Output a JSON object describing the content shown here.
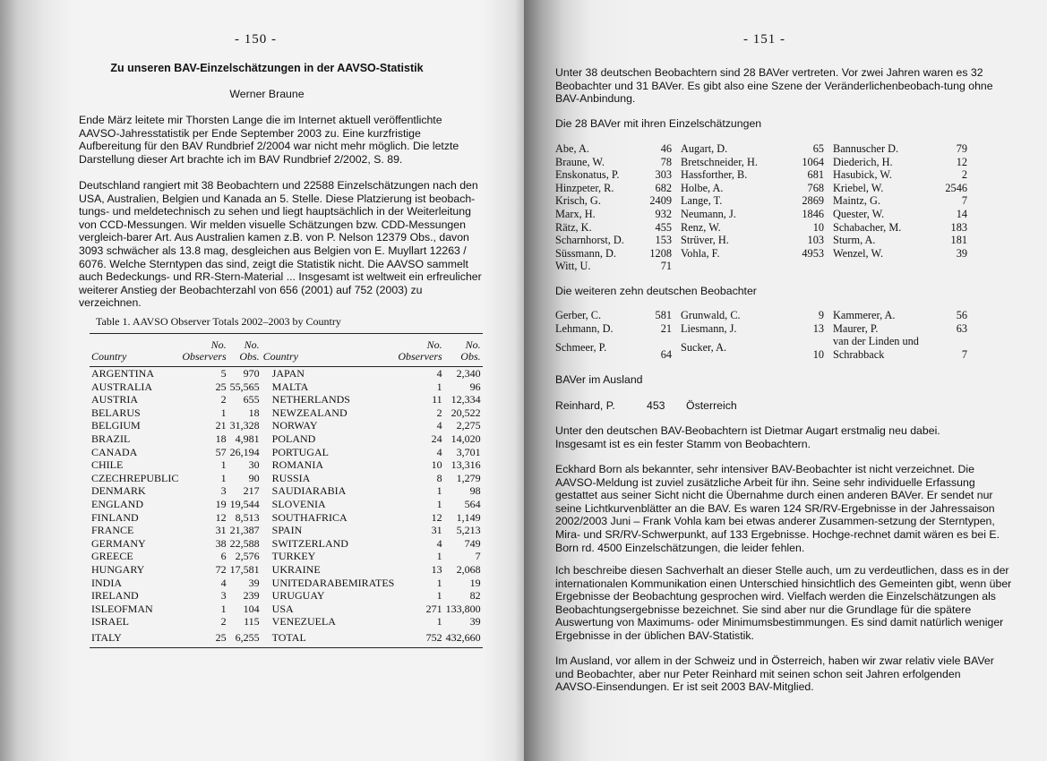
{
  "left_page": {
    "page_number": "- 150 -",
    "title": "Zu unseren BAV-Einzelschätzungen in der AAVSO-Statistik",
    "author": "Werner Braune",
    "paragraphs": [
      "Ende März leitete mir Thorsten Lange die im Internet aktuell veröffentlichte AAVSO-Jahresstatistik per Ende September 2003 zu. Eine kurzfristige Aufbereitung für den BAV Rundbrief 2/2004 war nicht mehr möglich. Die letzte Darstellung dieser Art brachte ich im BAV Rundbrief 2/2002, S. 89.",
      "Deutschland rangiert mit 38 Beobachtern und 22588 Einzelschätzungen nach den USA, Australien, Belgien und Kanada an 5. Stelle. Diese Platzierung ist beobach-tungs- und meldetechnisch zu sehen und liegt hauptsächlich in der Weiterleitung von CCD-Messungen. Wir melden visuelle Schätzungen bzw. CDD-Messungen vergleich-barer Art. Aus Australien kamen z.B. von P. Nelson 12379 Obs., davon 3093 schwächer als 13.8 mag, desgleichen aus Belgien von E. Muyllart 12263 / 6076. Welche Sterntypen das sind, zeigt die Statistik nicht. Die AAVSO sammelt auch Bedeckungs- und RR-Stern-Material ... Insgesamt ist weltweit ein erfreulicher weiterer Anstieg der Beobachterzahl von 656 (2001) auf  752 (2003) zu verzeichnen."
    ],
    "table": {
      "caption": "Table 1. AAVSO Observer Totals 2002–2003 by Country",
      "headers": {
        "country": "Country",
        "observers": "No. Observers",
        "obs": "No. Obs."
      },
      "left_rows": [
        [
          "ARGENTINA",
          "5",
          "970"
        ],
        [
          "AUSTRALIA",
          "25",
          "55,565"
        ],
        [
          "AUSTRIA",
          "2",
          "655"
        ],
        [
          "BELARUS",
          "1",
          "18"
        ],
        [
          "BELGIUM",
          "21",
          "31,328"
        ],
        [
          "BRAZIL",
          "18",
          "4,981"
        ],
        [
          "CANADA",
          "57",
          "26,194"
        ],
        [
          "CHILE",
          "1",
          "30"
        ],
        [
          "CZECHREPUBLIC",
          "1",
          "90"
        ],
        [
          "DENMARK",
          "3",
          "217"
        ],
        [
          "ENGLAND",
          "19",
          "19,544"
        ],
        [
          "FINLAND",
          "12",
          "8,513"
        ],
        [
          "FRANCE",
          "31",
          "21,387"
        ],
        [
          "GERMANY",
          "38",
          "22,588"
        ],
        [
          "GREECE",
          "6",
          "2,576"
        ],
        [
          "HUNGARY",
          "72",
          "17,581"
        ],
        [
          "INDIA",
          "4",
          "39"
        ],
        [
          "IRELAND",
          "3",
          "239"
        ],
        [
          "ISLEOFMAN",
          "1",
          "104"
        ],
        [
          "ISRAEL",
          "2",
          "115"
        ],
        [
          "ITALY",
          "25",
          "6,255"
        ]
      ],
      "right_rows": [
        [
          "JAPAN",
          "4",
          "2,340"
        ],
        [
          "MALTA",
          "1",
          "96"
        ],
        [
          "NETHERLANDS",
          "11",
          "12,334"
        ],
        [
          "NEWZEALAND",
          "2",
          "20,522"
        ],
        [
          "NORWAY",
          "4",
          "2,275"
        ],
        [
          "POLAND",
          "24",
          "14,020"
        ],
        [
          "PORTUGAL",
          "4",
          "3,701"
        ],
        [
          "ROMANIA",
          "10",
          "13,316"
        ],
        [
          "RUSSIA",
          "8",
          "1,279"
        ],
        [
          "SAUDIARABIA",
          "1",
          "98"
        ],
        [
          "SLOVENIA",
          "1",
          "564"
        ],
        [
          "SOUTHAFRICA",
          "12",
          "1,149"
        ],
        [
          "SPAIN",
          "31",
          "5,213"
        ],
        [
          "SWITZERLAND",
          "4",
          "749"
        ],
        [
          "TURKEY",
          "1",
          "7"
        ],
        [
          "UKRAINE",
          "13",
          "2,068"
        ],
        [
          "UNITEDARABEMIRATES",
          "1",
          "19"
        ],
        [
          "URUGUAY",
          "1",
          "82"
        ],
        [
          "USA",
          "271",
          "133,800"
        ],
        [
          "VENEZUELA",
          "1",
          "39"
        ],
        [
          "TOTAL",
          "752",
          "432,660"
        ]
      ]
    }
  },
  "right_page": {
    "page_number": "- 151 -",
    "intro": "Unter 38 deutschen Beobachtern sind 28 BAVer vertreten. Vor zwei Jahren waren es 32 Beobachter und 31 BAVer. Es gibt also eine Szene der Veränderlichenbeobach-tung ohne BAV-Anbindung.",
    "bav_heading": "Die 28 BAVer mit ihren Einzelschätzungen",
    "bav_observers": [
      [
        [
          "Abe, A.",
          "46"
        ],
        [
          "Augart, D.",
          "65"
        ],
        [
          "Bannuscher D.",
          "79"
        ]
      ],
      [
        [
          "Braune, W.",
          "78"
        ],
        [
          "Bretschneider, H.",
          "1064"
        ],
        [
          "Diederich, H.",
          "12"
        ]
      ],
      [
        [
          "Enskonatus, P.",
          "303"
        ],
        [
          "Hassforther, B.",
          "681"
        ],
        [
          "Hasubick, W.",
          "2"
        ]
      ],
      [
        [
          "Hinzpeter, R.",
          "682"
        ],
        [
          "Holbe, A.",
          "768"
        ],
        [
          "Kriebel, W.",
          "2546"
        ]
      ],
      [
        [
          "Krisch, G.",
          "2409"
        ],
        [
          "Lange, T.",
          "2869"
        ],
        [
          "Maintz, G.",
          "7"
        ]
      ],
      [
        [
          "Marx, H.",
          "932"
        ],
        [
          "Neumann, J.",
          "1846"
        ],
        [
          "Quester, W.",
          "14"
        ]
      ],
      [
        [
          "Rätz, K.",
          "455"
        ],
        [
          "Renz, W.",
          "10"
        ],
        [
          "Schabacher, M.",
          "183"
        ]
      ],
      [
        [
          "Scharnhorst, D.",
          "153"
        ],
        [
          "Strüver, H.",
          "103"
        ],
        [
          "Sturm, A.",
          "181"
        ]
      ],
      [
        [
          "Süssmann, D.",
          "1208"
        ],
        [
          "Vohla, F.",
          "4953"
        ],
        [
          "Wenzel, W.",
          "39"
        ]
      ],
      [
        [
          "Witt, U.",
          "71"
        ],
        [
          "",
          ""
        ],
        [
          "",
          ""
        ]
      ]
    ],
    "others_heading": "Die weiteren zehn deutschen Beobachter",
    "other_observers": [
      [
        [
          "Gerber, C.",
          "581"
        ],
        [
          "Grunwald, C.",
          "9"
        ],
        [
          "Kammerer, A.",
          "56"
        ]
      ],
      [
        [
          "Lehmann, D.",
          "21"
        ],
        [
          "Liesmann, J.",
          "13"
        ],
        [
          "Maurer, P.",
          "63"
        ]
      ],
      [
        [
          "Schmeer, P.",
          "64"
        ],
        [
          "Sucker, A.",
          "10"
        ],
        [
          "van der Linden und Schrabback",
          "7"
        ]
      ]
    ],
    "abroad_heading": "BAVer im Ausland",
    "abroad": {
      "name": "Reinhard, P.",
      "count": "453",
      "country": "Österreich"
    },
    "paragraphs": [
      "Unter den deutschen BAV-Beobachtern ist Dietmar Augart erstmalig neu dabei. Insgesamt ist es ein fester Stamm von Beobachtern.",
      "Eckhard Born als bekannter, sehr intensiver BAV-Beobachter ist nicht verzeichnet. Die AAVSO-Meldung ist zuviel zusätzliche Arbeit für ihn. Seine sehr individuelle Erfassung gestattet aus seiner Sicht nicht die Übernahme durch einen anderen BAVer. Er sendet nur seine Lichtkurvenblätter an die BAV. Es waren 124 SR/RV-Ergebnisse in der Jahressaison 2002/2003 Juni – Frank Vohla kam bei etwas anderer Zusammen-setzung der Sterntypen, Mira- und SR/RV-Schwerpunkt, auf 133 Ergebnisse. Hochge-rechnet damit wären es bei E. Born rd. 4500 Einzelschätzungen, die leider fehlen.",
      "Ich beschreibe diesen Sachverhalt an dieser Stelle auch, um zu verdeutlichen, dass es in der internationalen Kommunikation einen Unterschied hinsichtlich des Gemeinten gibt, wenn über Ergebnisse der Beobachtung gesprochen wird. Vielfach werden die Einzelschätzungen als Beobachtungsergebnisse bezeichnet. Sie sind aber nur die Grundlage für die spätere Auswertung von Maximums- oder Minimumsbestimmungen. Es sind damit natürlich weniger Ergebnisse in der üblichen BAV-Statistik.",
      "Im Ausland, vor allem in der Schweiz und in Österreich, haben wir zwar relativ viele BAVer und Beobachter, aber nur Peter Reinhard mit  seinen schon seit Jahren erfolgenden AAVSO-Einsendungen. Er ist seit 2003 BAV-Mitglied."
    ]
  }
}
